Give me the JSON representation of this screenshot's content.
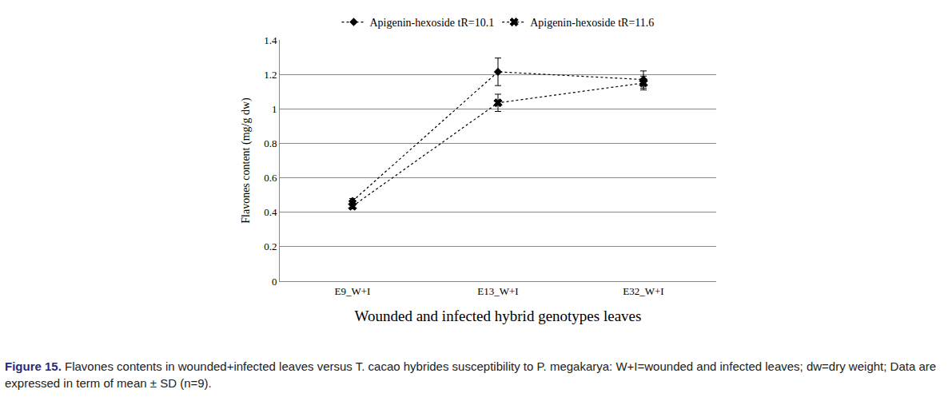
{
  "chart_data": {
    "type": "line",
    "x_label": "Wounded and infected hybrid genotypes leaves",
    "y_label": "Flavones content (mg/g dw)",
    "categories": [
      "E9_W+I",
      "E13_W+I",
      "E32_W+I"
    ],
    "series": [
      {
        "name": "Apigenin-hexoside tR=10.1",
        "color": "#000000",
        "marker": "diamond",
        "line_style": "dot",
        "values": [
          0.465,
          1.215,
          1.17
        ],
        "error": [
          0.015,
          0.08,
          0.05
        ]
      },
      {
        "name": "Apigenin-hexoside tR=11.6",
        "color": "#000000",
        "marker": "x",
        "line_style": "dot",
        "values": [
          0.435,
          1.035,
          1.15
        ],
        "error": [
          0.015,
          0.05,
          0.04
        ]
      }
    ],
    "ylim": [
      0,
      1.4
    ],
    "yticks": [
      0,
      0.2,
      0.4,
      0.6,
      0.8,
      1,
      1.2,
      1.4
    ],
    "grid": true,
    "legend": "top"
  },
  "caption": {
    "label": "Figure 15.",
    "text": "Flavones contents in wounded+infected leaves versus T. cacao hybrides susceptibility to P. megakarya: W+I=wounded and infected leaves; dw=dry weight; Data are expressed in term of mean ± SD (n=9)."
  }
}
